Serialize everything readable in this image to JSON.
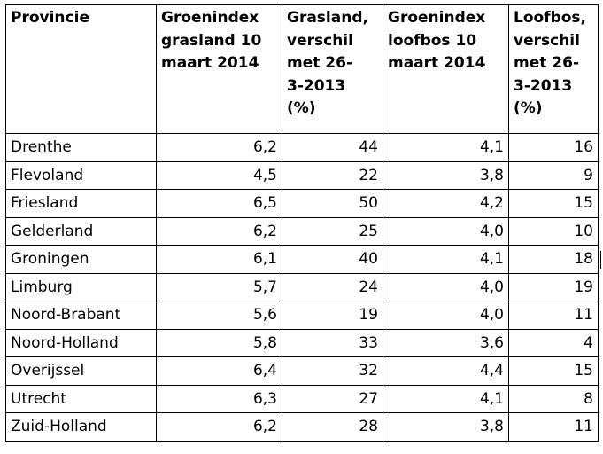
{
  "table": {
    "headers": [
      [
        "Provincie"
      ],
      [
        "Groenindex",
        "grasland 10",
        "maart 2014"
      ],
      [
        "Grasland,",
        "verschil",
        "met 26-",
        "3-2013",
        "(%)"
      ],
      [
        "Groenindex",
        "loofbos 10",
        "maart 2014"
      ],
      [
        "Loofbos,",
        "verschil",
        "met 26-",
        "3-2013",
        "(%)"
      ]
    ],
    "rows": [
      [
        "Drenthe",
        "6,2",
        "44",
        "4,1",
        "16"
      ],
      [
        "Flevoland",
        "4,5",
        "22",
        "3,8",
        "9"
      ],
      [
        "Friesland",
        "6,5",
        "50",
        "4,2",
        "15"
      ],
      [
        "Gelderland",
        "6,2",
        "25",
        "4,0",
        "10"
      ],
      [
        "Groningen",
        "6,1",
        "40",
        "4,1",
        "18"
      ],
      [
        "Limburg",
        "5,7",
        "24",
        "4,0",
        "19"
      ],
      [
        "Noord-Brabant",
        "5,6",
        "19",
        "4,0",
        "11"
      ],
      [
        "Noord-Holland",
        "5,8",
        "33",
        "3,6",
        "4"
      ],
      [
        "Overijssel",
        "6,4",
        "32",
        "4,4",
        "15"
      ],
      [
        "Utrecht",
        "6,3",
        "27",
        "4,1",
        "8"
      ],
      [
        "Zuid-Holland",
        "6,2",
        "28",
        "3,8",
        "11"
      ]
    ]
  }
}
